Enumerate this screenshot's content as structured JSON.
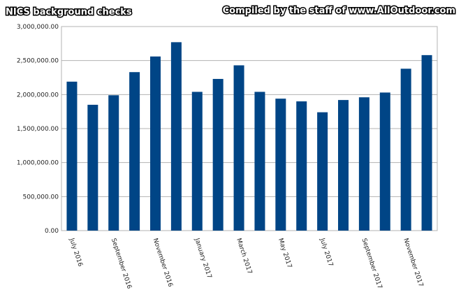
{
  "chart_data": {
    "type": "bar",
    "title": "NICS background checks",
    "subtitle": "Compiled by the staff of www.AllOutdoor.com",
    "categories": [
      "July 2016",
      null,
      "September 2016",
      null,
      "November 2016",
      null,
      "January 2017",
      null,
      "March 2017",
      null,
      "May 2017",
      null,
      "July 2017",
      null,
      "September 2017",
      null,
      "November 2017",
      null
    ],
    "values": [
      2190000,
      1850000,
      1990000,
      2330000,
      2560000,
      2770000,
      2040000,
      2230000,
      2430000,
      2040000,
      1940000,
      1900000,
      1740000,
      1920000,
      1960000,
      2030000,
      2380000,
      2580000
    ],
    "color": "#004586",
    "ylim": [
      0,
      3000000
    ],
    "yticks": [
      {
        "value": 0,
        "label": "0.00"
      },
      {
        "value": 500000,
        "label": "500,000.00"
      },
      {
        "value": 1000000,
        "label": "1,000,000.00"
      },
      {
        "value": 1500000,
        "label": "1,500,000.00"
      },
      {
        "value": 2000000,
        "label": "2,000,000.00"
      },
      {
        "value": 2500000,
        "label": "2,500,000.00"
      },
      {
        "value": 3000000,
        "label": "3,000,000.00"
      }
    ],
    "grid": true
  }
}
